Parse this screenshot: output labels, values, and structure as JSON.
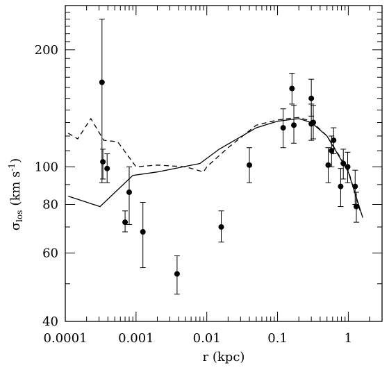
{
  "chart_data": {
    "type": "scatter",
    "xscale": "log",
    "yscale": "log",
    "xlim": [
      0.0001,
      3
    ],
    "ylim": [
      40,
      260
    ],
    "xlabel": "r (kpc)",
    "ylabel": {
      "main": "σ",
      "sub": "los",
      "unit": "(km s",
      "exp": "-1",
      "close": ")"
    },
    "x_ticks": [
      {
        "value": 0.0001,
        "label": "0.0001"
      },
      {
        "value": 0.001,
        "label": "0.001"
      },
      {
        "value": 0.01,
        "label": "0.01"
      },
      {
        "value": 0.1,
        "label": "0.1"
      },
      {
        "value": 1,
        "label": "1"
      }
    ],
    "y_ticks": [
      {
        "value": 40,
        "label": "40"
      },
      {
        "value": 60,
        "label": "60"
      },
      {
        "value": 80,
        "label": "80"
      },
      {
        "value": 100,
        "label": "100"
      },
      {
        "value": 200,
        "label": "200"
      }
    ],
    "y_minor_ticks": [
      50,
      70,
      90,
      110,
      120,
      130,
      140,
      150,
      160,
      170,
      180,
      190,
      210,
      220,
      230,
      240,
      250
    ],
    "grid": false,
    "legend": null,
    "points": [
      {
        "x": 0.00033,
        "y": 165,
        "lo": 91,
        "hi": 240
      },
      {
        "x": 0.00034,
        "y": 103,
        "lo": 93,
        "hi": 111
      },
      {
        "x": 0.00039,
        "y": 99,
        "lo": 91,
        "hi": 108
      },
      {
        "x": 0.0007,
        "y": 72,
        "lo": 68,
        "hi": 77
      },
      {
        "x": 0.0008,
        "y": 86,
        "lo": 71,
        "hi": 100
      },
      {
        "x": 0.00125,
        "y": 68,
        "lo": 55,
        "hi": 81
      },
      {
        "x": 0.0038,
        "y": 53,
        "lo": 47,
        "hi": 59
      },
      {
        "x": 0.016,
        "y": 70,
        "lo": 64,
        "hi": 77
      },
      {
        "x": 0.04,
        "y": 101,
        "lo": 91,
        "hi": 112
      },
      {
        "x": 0.12,
        "y": 126,
        "lo": 112,
        "hi": 141
      },
      {
        "x": 0.16,
        "y": 159,
        "lo": 145,
        "hi": 174
      },
      {
        "x": 0.17,
        "y": 128,
        "lo": 115,
        "hi": 144
      },
      {
        "x": 0.3,
        "y": 150,
        "lo": 135,
        "hi": 168
      },
      {
        "x": 0.3,
        "y": 129,
        "lo": 117,
        "hi": 145
      },
      {
        "x": 0.32,
        "y": 130,
        "lo": 118,
        "hi": 144
      },
      {
        "x": 0.52,
        "y": 101,
        "lo": 91,
        "hi": 112
      },
      {
        "x": 0.58,
        "y": 110,
        "lo": 100,
        "hi": 120
      },
      {
        "x": 0.62,
        "y": 117,
        "lo": 108,
        "hi": 126
      },
      {
        "x": 0.78,
        "y": 89,
        "lo": 79,
        "hi": 99
      },
      {
        "x": 0.85,
        "y": 102,
        "lo": 93,
        "hi": 111
      },
      {
        "x": 0.98,
        "y": 100,
        "lo": 91,
        "hi": 109
      },
      {
        "x": 1.25,
        "y": 89,
        "lo": 80,
        "hi": 98
      },
      {
        "x": 1.3,
        "y": 79,
        "lo": 72,
        "hi": 86
      }
    ],
    "series": [
      {
        "style": "solid",
        "x": [
          0.00011,
          0.00031,
          0.0009,
          0.002,
          0.008,
          0.015,
          0.05,
          0.1,
          0.2,
          0.3,
          0.5,
          1.0,
          1.6
        ],
        "y": [
          84,
          79,
          95,
          97,
          102,
          111,
          126,
          131,
          133,
          130,
          120,
          97,
          74
        ]
      },
      {
        "style": "dashed",
        "x": [
          0.00011,
          0.00015,
          0.00023,
          0.00035,
          0.00055,
          0.001,
          0.002,
          0.005,
          0.009,
          0.01,
          0.02,
          0.05,
          0.1,
          0.2,
          0.3,
          0.5,
          1.0,
          1.5
        ],
        "y": [
          122,
          118,
          133,
          117,
          116,
          100,
          101,
          100,
          97,
          100,
          112,
          128,
          132,
          134,
          131,
          120,
          98,
          76
        ]
      }
    ]
  }
}
